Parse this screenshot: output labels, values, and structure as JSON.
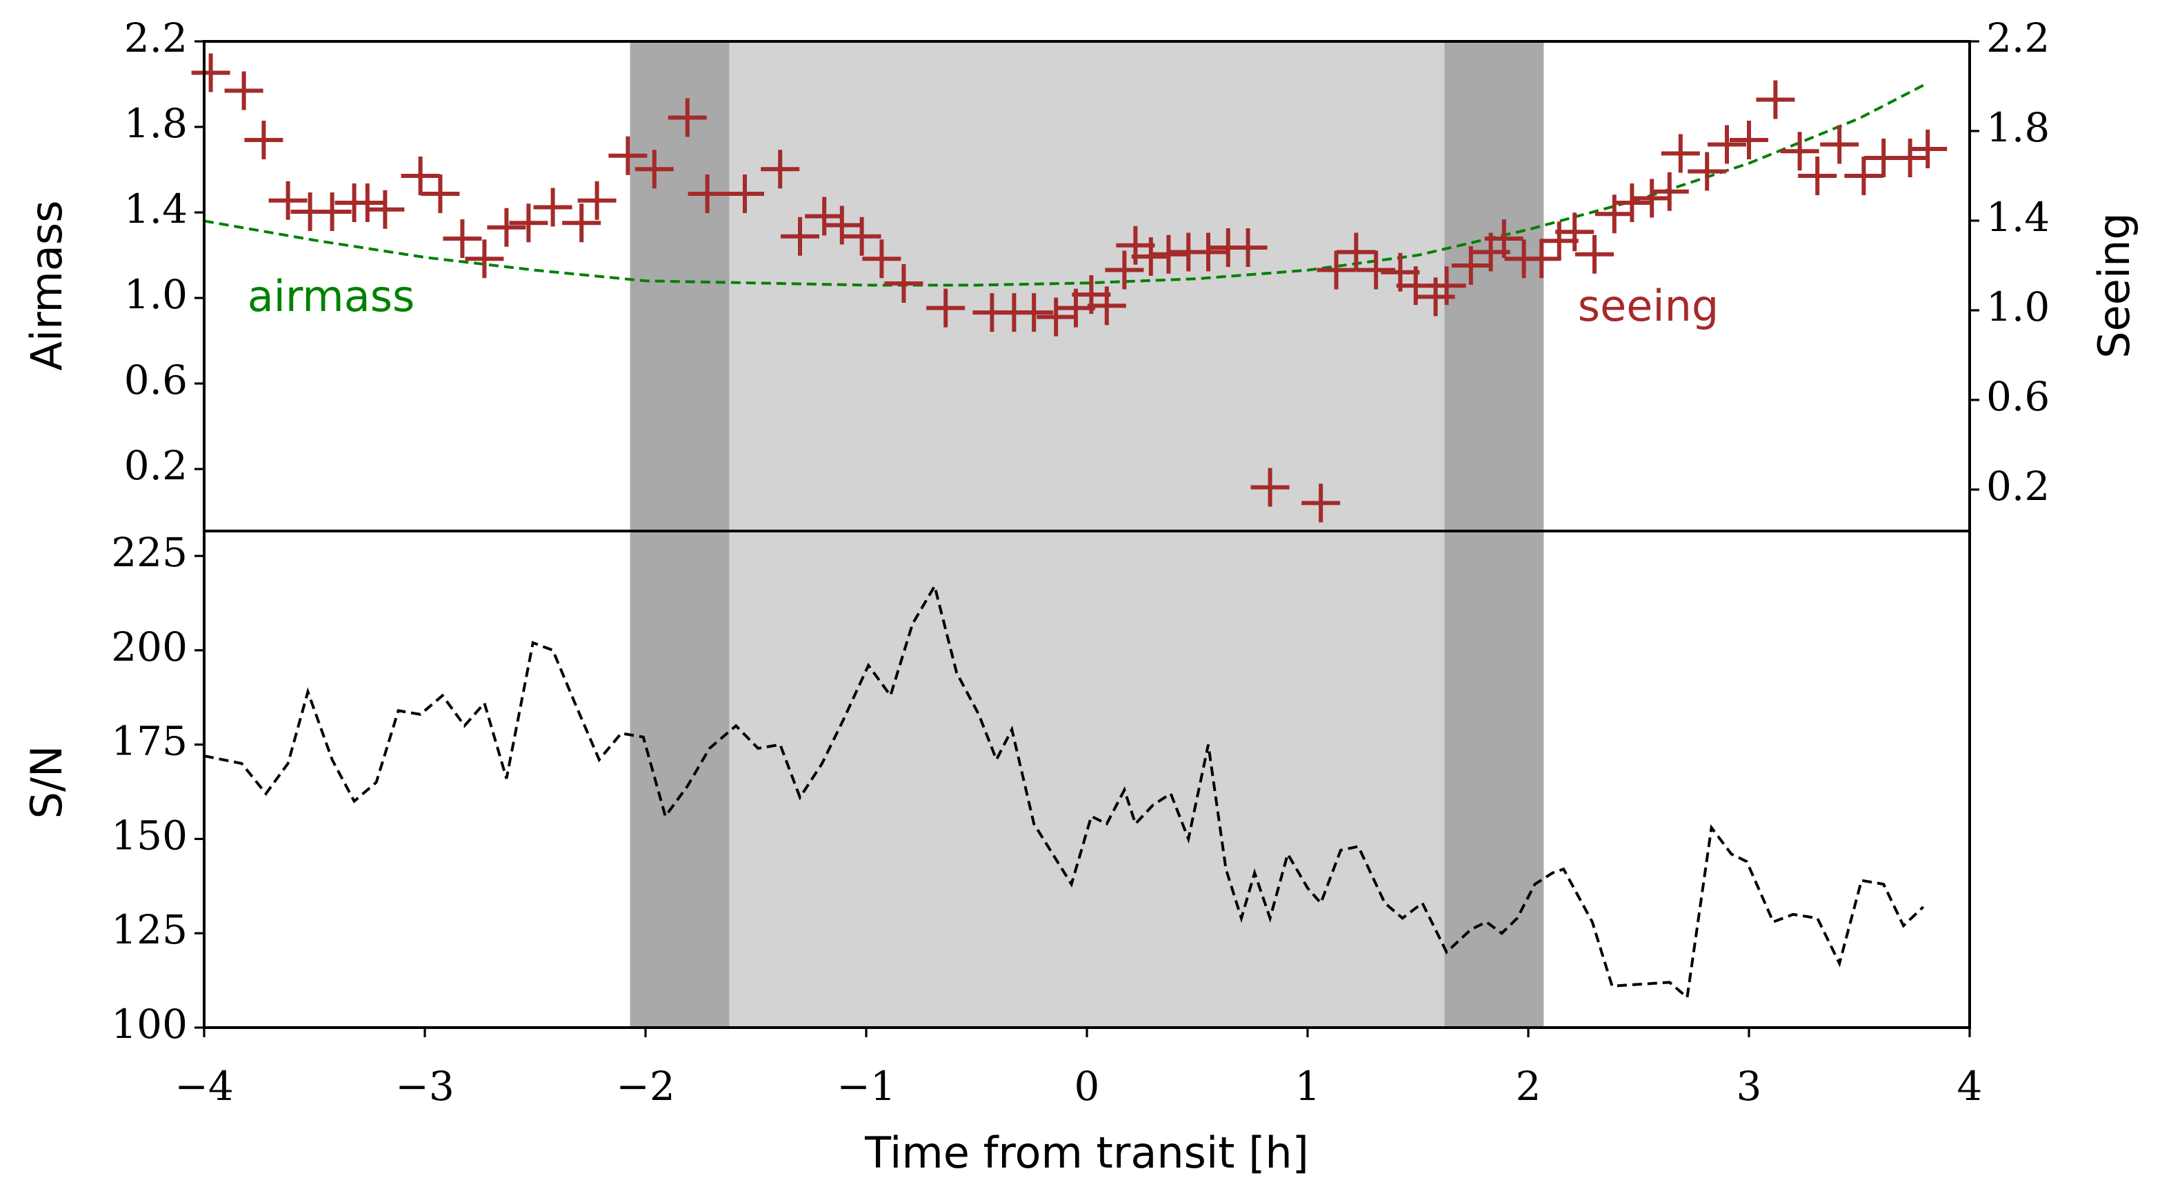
{
  "chart_data": [
    {
      "type": "scatter",
      "ylabel": "Airmass",
      "y2label": "Seeing",
      "xlim": [
        -4,
        4
      ],
      "ylim": [
        -0.09,
        2.2
      ],
      "yticks": [
        0.2,
        0.6,
        {
          "value": 1,
          "label": "1.0"
        },
        1.4,
        1.8,
        2.2
      ],
      "y2lim": [
        0.015,
        2.2
      ],
      "y2ticks": [
        0.2,
        0.6,
        {
          "value": 1,
          "label": "1.0"
        },
        1.4,
        1.8,
        2.2
      ],
      "spans": [
        {
          "xmin": -2.07,
          "xmax": -1.62,
          "color": "#a9a9a9"
        },
        {
          "xmin": -1.62,
          "xmax": 1.62,
          "color": "#d3d3d3"
        },
        {
          "xmin": 1.62,
          "xmax": 2.07,
          "color": "#a9a9a9"
        }
      ],
      "series": [
        {
          "name": "airmass",
          "type": "line",
          "dashed": true,
          "color": "#008000",
          "x": [
            -4,
            -3.5,
            -3,
            -2.5,
            -2,
            -1.5,
            -1,
            -0.5,
            0,
            0.5,
            1,
            1.5,
            2,
            2.5,
            3,
            3.5,
            3.8
          ],
          "values": [
            1.36,
            1.27,
            1.19,
            1.13,
            1.08,
            1.07,
            1.06,
            1.06,
            1.07,
            1.09,
            1.13,
            1.2,
            1.32,
            1.46,
            1.63,
            1.84,
            2.0
          ]
        },
        {
          "name": "seeing",
          "type": "scatter",
          "marker": "+",
          "axis": "y2",
          "color": "#a52a2a",
          "x": [
            -3.97,
            -3.82,
            -3.73,
            -3.62,
            -3.52,
            -3.42,
            -3.32,
            -3.26,
            -3.18,
            -3.02,
            -2.93,
            -2.83,
            -2.73,
            -2.63,
            -2.53,
            -2.42,
            -2.29,
            -2.22,
            -2.08,
            -1.96,
            -1.81,
            -1.72,
            -1.55,
            -1.39,
            -1.3,
            -1.19,
            -1.11,
            -1.02,
            -0.93,
            -0.83,
            -0.64,
            -0.43,
            -0.33,
            -0.24,
            -0.14,
            -0.05,
            0.02,
            0.09,
            0.17,
            0.22,
            0.29,
            0.37,
            0.46,
            0.55,
            0.64,
            0.73,
            0.83,
            1.06,
            1.13,
            1.22,
            1.31,
            1.42,
            1.49,
            1.58,
            1.63,
            1.74,
            1.83,
            1.89,
            1.98,
            2.06,
            2.14,
            2.21,
            2.3,
            2.39,
            2.47,
            2.56,
            2.64,
            2.69,
            2.81,
            2.9,
            3.0,
            3.12,
            3.23,
            3.31,
            3.41,
            3.52,
            3.61,
            3.73,
            3.81
          ],
          "values": [
            2.06,
            1.98,
            1.76,
            1.49,
            1.44,
            1.44,
            1.48,
            1.48,
            1.45,
            1.6,
            1.52,
            1.32,
            1.23,
            1.37,
            1.39,
            1.46,
            1.39,
            1.49,
            1.69,
            1.63,
            1.86,
            1.52,
            1.52,
            1.63,
            1.33,
            1.42,
            1.38,
            1.33,
            1.23,
            1.12,
            1.01,
            0.99,
            0.99,
            0.99,
            0.97,
            1.01,
            1.07,
            1.02,
            1.18,
            1.29,
            1.24,
            1.25,
            1.26,
            1.26,
            1.28,
            1.28,
            0.21,
            0.14,
            1.18,
            1.26,
            1.18,
            1.17,
            1.11,
            1.06,
            1.11,
            1.2,
            1.26,
            1.32,
            1.23,
            1.23,
            1.31,
            1.35,
            1.25,
            1.43,
            1.48,
            1.5,
            1.53,
            1.7,
            1.62,
            1.74,
            1.76,
            1.94,
            1.71,
            1.6,
            1.74,
            1.6,
            1.68,
            1.68,
            1.72
          ]
        }
      ]
    },
    {
      "type": "line",
      "ylabel": "S/N",
      "xlabel": "Time from transit [h]",
      "xlim": [
        -4,
        4
      ],
      "xticks": [
        {
          "value": -4,
          "label": "−4"
        },
        {
          "value": -3,
          "label": "−3"
        },
        {
          "value": -2,
          "label": "−2"
        },
        {
          "value": -1,
          "label": "−1"
        },
        0,
        1,
        2,
        3,
        4
      ],
      "ylim": [
        100,
        231.6
      ],
      "yticks": [
        100,
        125,
        150,
        175,
        200,
        225
      ],
      "spans": [
        {
          "xmin": -2.07,
          "xmax": -1.62,
          "color": "#a9a9a9"
        },
        {
          "xmin": -1.62,
          "xmax": 1.62,
          "color": "#d3d3d3"
        },
        {
          "xmin": 1.62,
          "xmax": 2.07,
          "color": "#a9a9a9"
        }
      ],
      "series": [
        {
          "type": "line",
          "dashed": true,
          "color": "#000000",
          "x": [
            -4,
            -3.83,
            -3.72,
            -3.62,
            -3.53,
            -3.42,
            -3.32,
            -3.22,
            -3.12,
            -3.02,
            -2.92,
            -2.82,
            -2.73,
            -2.63,
            -2.51,
            -2.42,
            -2.32,
            -2.21,
            -2.11,
            -2.01,
            -1.91,
            -1.81,
            -1.71,
            -1.59,
            -1.49,
            -1.39,
            -1.3,
            -1.2,
            -1.1,
            -0.99,
            -0.89,
            -0.79,
            -0.69,
            -0.59,
            -0.49,
            -0.41,
            -0.34,
            -0.24,
            -0.07,
            0.02,
            0.09,
            0.17,
            0.22,
            0.3,
            0.38,
            0.46,
            0.55,
            0.63,
            0.7,
            0.76,
            0.83,
            0.91,
            1.0,
            1.06,
            1.15,
            1.23,
            1.35,
            1.43,
            1.52,
            1.63,
            1.74,
            1.81,
            1.88,
            1.95,
            2.03,
            2.11,
            2.16,
            2.29,
            2.38,
            2.64,
            2.72,
            2.83,
            2.92,
            2.99,
            3.11,
            3.2,
            3.31,
            3.41,
            3.51,
            3.61,
            3.7,
            3.79
          ],
          "values": [
            172,
            170,
            162,
            170,
            189,
            171,
            160,
            165,
            184,
            183,
            188,
            180,
            186,
            166,
            202,
            200,
            186,
            171,
            178,
            177,
            156,
            164,
            174,
            180,
            174,
            175,
            161,
            170,
            182,
            196,
            188,
            207,
            217,
            194,
            183,
            171,
            179,
            154,
            138,
            156,
            154,
            163,
            154,
            159,
            162,
            150,
            175,
            142,
            129,
            141,
            129,
            146,
            137,
            133,
            147,
            148,
            133,
            129,
            133,
            120,
            126,
            128,
            125,
            129,
            138,
            141,
            142,
            128,
            111,
            112,
            108,
            153,
            146,
            144,
            128,
            130,
            129,
            117,
            139,
            138,
            127,
            132
          ]
        }
      ]
    }
  ]
}
